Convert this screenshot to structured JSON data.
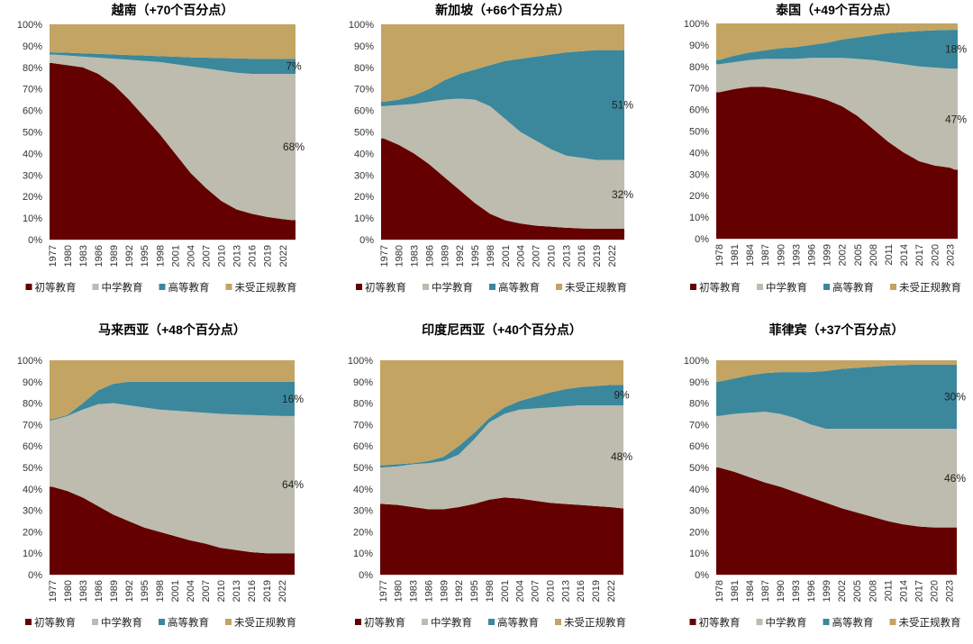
{
  "chart_data": [
    {
      "type": "area",
      "stacked": true,
      "title": "越南（+70个百分点）",
      "ylim": [
        0,
        100
      ],
      "y_ticks": [
        "0%",
        "10%",
        "20%",
        "30%",
        "40%",
        "50%",
        "60%",
        "70%",
        "80%",
        "90%",
        "100%"
      ],
      "x": [
        1977,
        1980,
        1983,
        1986,
        1989,
        1992,
        1995,
        1998,
        2001,
        2004,
        2007,
        2010,
        2013,
        2016,
        2019,
        2022,
        2024
      ],
      "x_ticks": [
        "1977",
        "1980",
        "1983",
        "1986",
        "1989",
        "1992",
        "1995",
        "1998",
        "2001",
        "2004",
        "2007",
        "2010",
        "2013",
        "2016",
        "2019",
        "2022"
      ],
      "series": [
        {
          "name": "初等教育",
          "values": [
            82,
            81,
            80,
            77,
            72,
            65,
            57,
            49,
            40,
            31,
            24,
            18,
            14,
            12,
            10.5,
            9.5,
            9
          ]
        },
        {
          "name": "中学教育",
          "values": [
            4,
            4.5,
            5,
            7.5,
            12,
            18.5,
            26,
            33.5,
            41.5,
            49.5,
            55.5,
            60.5,
            63.5,
            65,
            66.5,
            67.5,
            68
          ]
        },
        {
          "name": "高等教育",
          "values": [
            1,
            1.3,
            1.5,
            1.8,
            2,
            2.2,
            2.5,
            2.7,
            3.5,
            4.2,
            5,
            5.8,
            6.7,
            7,
            7,
            7,
            7
          ]
        },
        {
          "name": "未受正规教育",
          "values": [
            13,
            13.2,
            13.5,
            13.7,
            14,
            14.3,
            14.5,
            14.8,
            15,
            15.3,
            15.5,
            15.7,
            15.8,
            16,
            16,
            16,
            16
          ]
        }
      ],
      "annotations": [
        {
          "series": "高等教育",
          "text": "7%"
        },
        {
          "series": "中学教育",
          "text": "68%"
        }
      ]
    },
    {
      "type": "area",
      "stacked": true,
      "title": "新加坡（+66个百分点）",
      "ylim": [
        0,
        100
      ],
      "y_ticks": [
        "0%",
        "10%",
        "20%",
        "30%",
        "40%",
        "50%",
        "60%",
        "70%",
        "80%",
        "90%",
        "100%"
      ],
      "x": [
        1977,
        1980,
        1983,
        1986,
        1989,
        1992,
        1995,
        1998,
        2001,
        2004,
        2007,
        2010,
        2013,
        2016,
        2019,
        2022,
        2024
      ],
      "x_ticks": [
        "1977",
        "1980",
        "1983",
        "1986",
        "1989",
        "1992",
        "1995",
        "1998",
        "2001",
        "2004",
        "2007",
        "2010",
        "2013",
        "2016",
        "2019",
        "2022"
      ],
      "series": [
        {
          "name": "初等教育",
          "values": [
            47,
            44,
            40,
            35,
            29,
            23,
            17,
            12,
            9,
            7.5,
            6.5,
            6,
            5.5,
            5.2,
            5,
            5,
            5
          ]
        },
        {
          "name": "中学教育",
          "values": [
            15,
            18.5,
            23,
            29,
            36,
            42.5,
            48,
            50,
            47,
            42.5,
            39.5,
            36,
            33.5,
            32.8,
            32,
            32,
            32
          ]
        },
        {
          "name": "高等教育",
          "values": [
            2,
            2.5,
            4,
            6,
            9,
            11.5,
            14,
            19,
            27,
            34,
            39,
            44,
            48,
            49.5,
            51,
            51,
            51
          ]
        },
        {
          "name": "未受正规教育",
          "values": [
            36,
            35,
            33,
            30,
            26,
            23,
            21,
            19,
            17,
            16,
            15,
            14,
            13,
            12.5,
            12,
            12,
            12
          ]
        }
      ],
      "annotations": [
        {
          "series": "高等教育",
          "text": "51%"
        },
        {
          "series": "中学教育",
          "text": "32%"
        }
      ]
    },
    {
      "type": "area",
      "stacked": true,
      "title": "泰国（+49个百分点）",
      "ylim": [
        0,
        100
      ],
      "y_ticks": [
        "0%",
        "10%",
        "20%",
        "30%",
        "40%",
        "50%",
        "60%",
        "70%",
        "80%",
        "90%",
        "100%"
      ],
      "x": [
        1978,
        1981,
        1984,
        1987,
        1990,
        1993,
        1996,
        1999,
        2002,
        2005,
        2008,
        2011,
        2014,
        2017,
        2020,
        2023,
        2024
      ],
      "x_ticks": [
        "1978",
        "1981",
        "1984",
        "1987",
        "1990",
        "1993",
        "1996",
        "1999",
        "2002",
        "2005",
        "2008",
        "2011",
        "2014",
        "2017",
        "2020",
        "2023"
      ],
      "series": [
        {
          "name": "初等教育",
          "values": [
            68,
            69.5,
            70.5,
            70.5,
            69.5,
            68,
            66.5,
            64.5,
            61.5,
            57,
            51,
            45,
            40,
            36,
            34,
            33,
            32
          ]
        },
        {
          "name": "中学教育",
          "values": [
            13,
            12.5,
            12.5,
            13,
            14,
            15.5,
            17.5,
            19.5,
            22.5,
            26.5,
            32,
            37,
            41,
            44,
            45.5,
            46,
            47
          ]
        },
        {
          "name": "高等教育",
          "values": [
            2,
            3,
            3.5,
            4,
            5,
            5.5,
            6,
            7,
            8.5,
            10,
            11.5,
            13.5,
            15,
            16.5,
            17.3,
            18,
            18
          ]
        },
        {
          "name": "未受正规教育",
          "values": [
            17,
            15,
            13.5,
            12.5,
            11.5,
            11,
            10,
            9,
            7.5,
            6.5,
            5.5,
            4.5,
            4,
            3.5,
            3.2,
            3,
            3
          ]
        }
      ],
      "annotations": [
        {
          "series": "高等教育",
          "text": "18%"
        },
        {
          "series": "中学教育",
          "text": "47%"
        }
      ]
    },
    {
      "type": "area",
      "stacked": true,
      "title": "马来西亚（+48个百分点）",
      "ylim": [
        0,
        100
      ],
      "y_ticks": [
        "0%",
        "10%",
        "20%",
        "30%",
        "40%",
        "50%",
        "60%",
        "70%",
        "80%",
        "90%",
        "100%"
      ],
      "x": [
        1977,
        1980,
        1983,
        1986,
        1989,
        1992,
        1995,
        1998,
        2001,
        2004,
        2007,
        2010,
        2013,
        2016,
        2019,
        2022,
        2024
      ],
      "x_ticks": [
        "1977",
        "1980",
        "1983",
        "1986",
        "1989",
        "1992",
        "1995",
        "1998",
        "2001",
        "2004",
        "2007",
        "2010",
        "2013",
        "2016",
        "2019",
        "2022"
      ],
      "series": [
        {
          "name": "初等教育",
          "values": [
            41,
            39,
            36,
            32,
            28,
            25,
            22,
            20,
            18,
            16,
            14.5,
            12.5,
            11.5,
            10.5,
            10,
            10,
            10
          ]
        },
        {
          "name": "中学教育",
          "values": [
            31,
            35,
            41,
            47.5,
            52,
            54,
            56,
            57,
            58.5,
            60,
            61,
            62.5,
            63.2,
            64,
            64.2,
            64,
            64
          ]
        },
        {
          "name": "高等教育",
          "values": [
            0.5,
            0.5,
            3,
            6.5,
            9,
            11,
            12,
            13,
            13.5,
            14,
            14.5,
            15,
            15.3,
            15.5,
            15.8,
            16,
            16
          ]
        },
        {
          "name": "未受正规教育",
          "values": [
            27.5,
            25.5,
            20,
            14,
            11,
            10,
            10,
            10,
            10,
            10,
            10,
            10,
            10,
            10,
            10,
            10,
            10
          ]
        }
      ],
      "annotations": [
        {
          "series": "高等教育",
          "text": "16%"
        },
        {
          "series": "中学教育",
          "text": "64%"
        }
      ]
    },
    {
      "type": "area",
      "stacked": true,
      "title": "印度尼西亚（+40个百分点）",
      "ylim": [
        0,
        100
      ],
      "y_ticks": [
        "0%",
        "10%",
        "20%",
        "30%",
        "40%",
        "50%",
        "60%",
        "70%",
        "80%",
        "90%",
        "100%"
      ],
      "x": [
        1977,
        1980,
        1983,
        1986,
        1989,
        1992,
        1995,
        1998,
        2001,
        2004,
        2007,
        2010,
        2013,
        2016,
        2019,
        2022,
        2024
      ],
      "x_ticks": [
        "1977",
        "1980",
        "1983",
        "1986",
        "1989",
        "1992",
        "1995",
        "1998",
        "2001",
        "2004",
        "2007",
        "2010",
        "2013",
        "2016",
        "2019",
        "2022"
      ],
      "series": [
        {
          "name": "初等教育",
          "values": [
            33,
            32.5,
            31.5,
            30.5,
            30.5,
            31.5,
            33,
            35,
            36,
            35.5,
            34.5,
            33.5,
            33,
            32.5,
            32,
            31.5,
            31
          ]
        },
        {
          "name": "中学教育",
          "values": [
            17,
            18,
            20,
            21.5,
            22.5,
            24.5,
            30,
            36,
            39,
            41.5,
            43,
            44.5,
            45.5,
            46.5,
            47,
            47.5,
            48
          ]
        },
        {
          "name": "高等教育",
          "values": [
            1,
            1,
            0.5,
            1,
            2,
            4,
            3,
            2,
            3,
            4,
            5.5,
            7,
            8,
            8.5,
            9,
            9.5,
            9.5
          ]
        },
        {
          "name": "未受正规教育",
          "values": [
            49,
            48.5,
            48,
            47,
            45,
            40,
            34,
            27,
            22,
            19,
            17,
            15,
            13.5,
            12.5,
            12,
            11.5,
            11.5
          ]
        }
      ],
      "annotations": [
        {
          "series": "高等教育",
          "text": "9%"
        },
        {
          "series": "中学教育",
          "text": "48%"
        }
      ]
    },
    {
      "type": "area",
      "stacked": true,
      "title": "菲律宾（+37个百分点）",
      "ylim": [
        0,
        100
      ],
      "y_ticks": [
        "0%",
        "10%",
        "20%",
        "30%",
        "40%",
        "50%",
        "60%",
        "70%",
        "80%",
        "90%",
        "100%"
      ],
      "x": [
        1978,
        1981,
        1984,
        1987,
        1990,
        1993,
        1996,
        1999,
        2002,
        2005,
        2008,
        2011,
        2014,
        2017,
        2020,
        2023,
        2024
      ],
      "x_ticks": [
        "1978",
        "1981",
        "1984",
        "1987",
        "1990",
        "1993",
        "1996",
        "1999",
        "2002",
        "2005",
        "2008",
        "2011",
        "2014",
        "2017",
        "2020",
        "2023"
      ],
      "series": [
        {
          "name": "初等教育",
          "values": [
            50,
            48,
            45.5,
            43,
            41,
            38.5,
            36,
            33.5,
            31,
            29,
            27,
            25,
            23.5,
            22.5,
            22,
            22,
            22
          ]
        },
        {
          "name": "中学教育",
          "values": [
            24,
            27,
            30,
            33,
            34,
            34.5,
            34,
            34.5,
            37,
            39,
            41,
            43,
            44.5,
            45.5,
            46,
            46,
            46
          ]
        },
        {
          "name": "高等教育",
          "values": [
            16,
            16.5,
            17.5,
            18,
            19.5,
            21.5,
            24.5,
            27,
            28,
            28.5,
            29,
            29.5,
            29.8,
            30,
            30,
            30,
            30
          ]
        },
        {
          "name": "未受正规教育",
          "values": [
            10,
            8.5,
            7,
            6,
            5.5,
            5.5,
            5.5,
            5,
            4,
            3.5,
            3,
            2.5,
            2.2,
            2,
            2,
            2,
            2
          ]
        }
      ],
      "annotations": [
        {
          "series": "高等教育",
          "text": "30%"
        },
        {
          "series": "中学教育",
          "text": "46%"
        }
      ]
    }
  ],
  "legend": {
    "placement": "bottom",
    "items": [
      "初等教育",
      "中学教育",
      "高等教育",
      "未受正规教育"
    ]
  },
  "colors": {
    "初等教育": "#650000",
    "中学教育": "#bdbcae",
    "高等教育": "#3b889c",
    "未受正规教育": "#c3a462"
  }
}
